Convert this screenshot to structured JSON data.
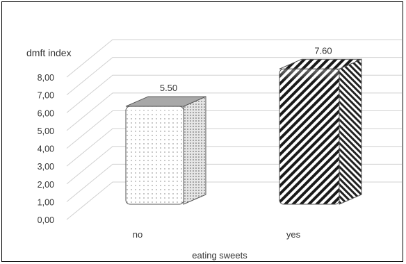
{
  "chart_data": {
    "type": "bar",
    "style": "3d-column",
    "ylabel": "dmft index",
    "xlabel": "eating sweets",
    "categories": [
      "no",
      "yes"
    ],
    "values": [
      5.5,
      7.6
    ],
    "data_labels": [
      "5.50",
      "7.60"
    ],
    "ylim": [
      0,
      8
    ],
    "yticks": [
      "0,00",
      "1,00",
      "2,00",
      "3,00",
      "4,00",
      "5,00",
      "6,00",
      "7,00",
      "8,00"
    ],
    "grid": true,
    "legend": "none",
    "fills": [
      "dotted",
      "diagonal-stripes"
    ]
  },
  "colors": {
    "grid": "#d0d0d0",
    "bar_edge": "#555555",
    "stripe": "#1a1a1a",
    "dot": "#666666"
  }
}
